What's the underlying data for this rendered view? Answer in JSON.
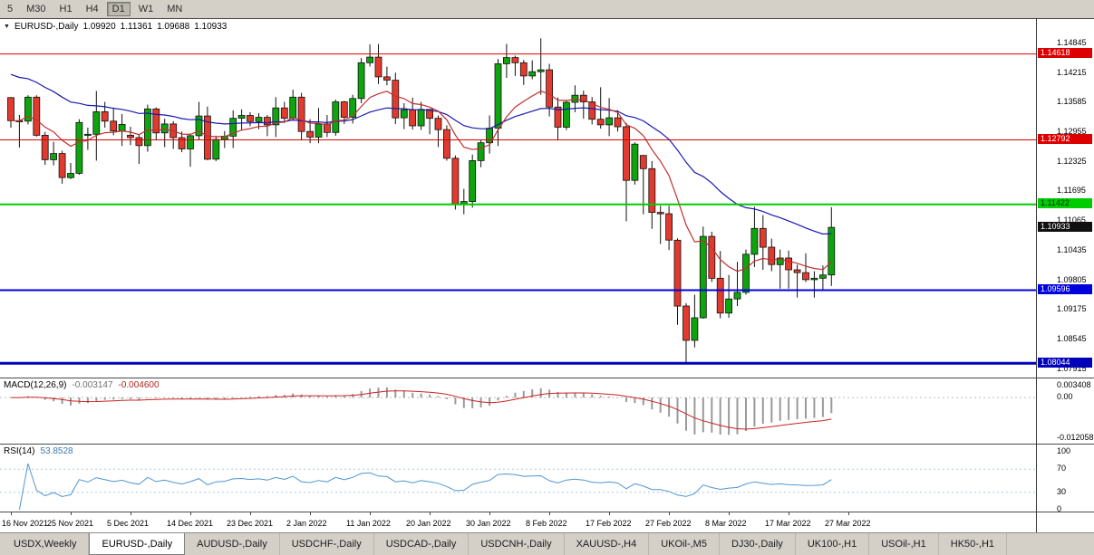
{
  "toolbar": {
    "timeframes": [
      {
        "label": "5",
        "active": false
      },
      {
        "label": "M30",
        "active": false
      },
      {
        "label": "H1",
        "active": false
      },
      {
        "label": "H4",
        "active": false
      },
      {
        "label": "D1",
        "active": true
      },
      {
        "label": "W1",
        "active": false
      },
      {
        "label": "MN",
        "active": false
      }
    ]
  },
  "chart": {
    "marker": "▼",
    "symbol_period": "EURUSD-,Daily",
    "open": "1.09920",
    "high": "1.11361",
    "low": "1.09688",
    "close": "1.10933"
  },
  "price_axis": {
    "ticks": [
      "1.14845",
      "1.14215",
      "1.13585",
      "1.12955",
      "1.12325",
      "1.11695",
      "1.11065",
      "1.10435",
      "1.09805",
      "1.09175",
      "1.08545",
      "1.07915"
    ],
    "badges": [
      {
        "name": "resistance-upper",
        "value": "1.14618",
        "bg": "#dd0000",
        "fg": "#ffffff"
      },
      {
        "name": "resistance-lower",
        "value": "1.12792",
        "bg": "#dd0000",
        "fg": "#ffffff"
      },
      {
        "name": "support-green",
        "value": "1.11422",
        "bg": "#00cc00",
        "fg": "#002b00"
      },
      {
        "name": "current-price",
        "value": "1.10933",
        "bg": "#101010",
        "fg": "#ffffff"
      },
      {
        "name": "support-blue",
        "value": "1.09596",
        "bg": "#0000dd",
        "fg": "#ffffff"
      },
      {
        "name": "support-blue-low",
        "value": "1.08044",
        "bg": "#0000bb",
        "fg": "#ffffff"
      }
    ]
  },
  "macd": {
    "label": "MACD(12,26,9)",
    "value_main": "-0.003147",
    "value_signal": "-0.004600",
    "scale": [
      "0.003408",
      "0.00",
      "-0.012058"
    ]
  },
  "rsi": {
    "label": "RSI(14)",
    "value": "53.8528",
    "scale": [
      "100",
      "70",
      "30",
      "0"
    ],
    "levels": [
      70,
      30
    ]
  },
  "tabs": {
    "items": [
      {
        "label": "USDX,Weekly",
        "active": false
      },
      {
        "label": "EURUSD-,Daily",
        "active": true
      },
      {
        "label": "AUDUSD-,Daily",
        "active": false
      },
      {
        "label": "USDCHF-,Daily",
        "active": false
      },
      {
        "label": "USDCAD-,Daily",
        "active": false
      },
      {
        "label": "USDCNH-,Daily",
        "active": false
      },
      {
        "label": "XAUUSD-,H4",
        "active": false
      },
      {
        "label": "UKOil-,M5",
        "active": false
      },
      {
        "label": "DJ30-,Daily",
        "active": false
      },
      {
        "label": "UK100-,H1",
        "active": false
      },
      {
        "label": "USOil-,H1",
        "active": false
      },
      {
        "label": "HK50-,H1",
        "active": false
      }
    ]
  },
  "chart_data": {
    "type": "candlestick",
    "symbol": "EURUSD-",
    "timeframe": "Daily",
    "price_range": [
      1.0774,
      1.1536
    ],
    "layout_hints": {
      "label_every_n_bars": 7,
      "grid": false,
      "shift_right": true
    },
    "colors": {
      "bull": "#0da40d",
      "bear": "#e23a2e",
      "ma_fast": "#c03030",
      "ma_slow": "#1818b0",
      "macd_hist": "#9a9a9a",
      "macd_signal": "#cc2222",
      "rsi": "#4f96d2",
      "level_red": "#dd0000",
      "level_green": "#00cc00",
      "level_blue": "#0000dd"
    },
    "levels": [
      {
        "value": 1.14618,
        "color": "#dd0000",
        "width": 1
      },
      {
        "value": 1.12792,
        "color": "#dd0000",
        "width": 1
      },
      {
        "value": 1.11422,
        "color": "#00cc00",
        "width": 2
      },
      {
        "value": 1.09596,
        "color": "#0000dd",
        "width": 2
      },
      {
        "value": 1.08044,
        "color": "#0000bb",
        "width": 3
      }
    ],
    "date_labels": [
      "16 Nov 2021",
      "25 Nov 2021",
      "5 Dec 2021",
      "14 Dec 2021",
      "23 Dec 2021",
      "2 Jan 2022",
      "11 Jan 2022",
      "20 Jan 2022",
      "30 Jan 2022",
      "8 Feb 2022",
      "17 Feb 2022",
      "27 Feb 2022",
      "8 Mar 2022",
      "17 Mar 2022",
      "27 Mar 2022"
    ],
    "candles": [
      [
        1.1369,
        1.137,
        1.1305,
        1.132
      ],
      [
        1.132,
        1.1332,
        1.1263,
        1.1319
      ],
      [
        1.1319,
        1.1374,
        1.1312,
        1.137
      ],
      [
        1.137,
        1.1374,
        1.1286,
        1.1289
      ],
      [
        1.1289,
        1.1296,
        1.1226,
        1.1237
      ],
      [
        1.1237,
        1.1275,
        1.1225,
        1.125
      ],
      [
        1.125,
        1.1256,
        1.1186,
        1.1199
      ],
      [
        1.1199,
        1.123,
        1.1196,
        1.1208
      ],
      [
        1.1208,
        1.1323,
        1.1205,
        1.1316
      ],
      [
        1.129,
        1.1305,
        1.1258,
        1.1291
      ],
      [
        1.1291,
        1.1383,
        1.1235,
        1.1339
      ],
      [
        1.1339,
        1.136,
        1.1305,
        1.1319
      ],
      [
        1.1319,
        1.1348,
        1.1289,
        1.1298
      ],
      [
        1.1298,
        1.1334,
        1.1266,
        1.1312
      ],
      [
        1.1289,
        1.1307,
        1.1268,
        1.1284
      ],
      [
        1.1284,
        1.129,
        1.1228,
        1.1267
      ],
      [
        1.1267,
        1.1354,
        1.1254,
        1.1345
      ],
      [
        1.1345,
        1.1348,
        1.128,
        1.1294
      ],
      [
        1.1294,
        1.1324,
        1.1264,
        1.1313
      ],
      [
        1.1313,
        1.1319,
        1.126,
        1.1284
      ],
      [
        1.1284,
        1.1297,
        1.1253,
        1.126
      ],
      [
        1.126,
        1.1292,
        1.1222,
        1.1288
      ],
      [
        1.1288,
        1.136,
        1.128,
        1.133
      ],
      [
        1.133,
        1.135,
        1.1236,
        1.1238
      ],
      [
        1.1238,
        1.1288,
        1.1234,
        1.128
      ],
      [
        1.128,
        1.1298,
        1.1262,
        1.1287
      ],
      [
        1.1287,
        1.1342,
        1.1262,
        1.1325
      ],
      [
        1.1325,
        1.1344,
        1.13,
        1.1331
      ],
      [
        1.1331,
        1.1338,
        1.1308,
        1.1318
      ],
      [
        1.1318,
        1.1336,
        1.1302,
        1.1327
      ],
      [
        1.1327,
        1.1332,
        1.1287,
        1.1311
      ],
      [
        1.1311,
        1.137,
        1.1285,
        1.1347
      ],
      [
        1.1347,
        1.136,
        1.1315,
        1.1325
      ],
      [
        1.1325,
        1.1386,
        1.132,
        1.137
      ],
      [
        1.137,
        1.1379,
        1.1279,
        1.1297
      ],
      [
        1.1297,
        1.1323,
        1.1272,
        1.1285
      ],
      [
        1.1285,
        1.1347,
        1.1272,
        1.1313
      ],
      [
        1.1313,
        1.1332,
        1.1285,
        1.1295
      ],
      [
        1.1295,
        1.1365,
        1.1288,
        1.136
      ],
      [
        1.136,
        1.1362,
        1.1313,
        1.1327
      ],
      [
        1.1327,
        1.1375,
        1.1314,
        1.1367
      ],
      [
        1.1367,
        1.1453,
        1.1357,
        1.1443
      ],
      [
        1.1443,
        1.1482,
        1.1435,
        1.1455
      ],
      [
        1.1455,
        1.1483,
        1.1398,
        1.1413
      ],
      [
        1.1413,
        1.1435,
        1.1395,
        1.1406
      ],
      [
        1.1406,
        1.1422,
        1.1313,
        1.1326
      ],
      [
        1.1326,
        1.1357,
        1.1302,
        1.1343
      ],
      [
        1.1343,
        1.1369,
        1.1301,
        1.1309
      ],
      [
        1.1309,
        1.136,
        1.13,
        1.1344
      ],
      [
        1.1344,
        1.1344,
        1.1291,
        1.1325
      ],
      [
        1.1325,
        1.1331,
        1.1264,
        1.1301
      ],
      [
        1.1301,
        1.131,
        1.1235,
        1.124
      ],
      [
        1.124,
        1.1246,
        1.1131,
        1.1143
      ],
      [
        1.1143,
        1.1175,
        1.1121,
        1.1148
      ],
      [
        1.1148,
        1.1248,
        1.1135,
        1.1235
      ],
      [
        1.1235,
        1.1279,
        1.1221,
        1.1273
      ],
      [
        1.1273,
        1.1331,
        1.125,
        1.1304
      ],
      [
        1.1304,
        1.1451,
        1.1266,
        1.1441
      ],
      [
        1.1441,
        1.1483,
        1.1411,
        1.1454
      ],
      [
        1.1454,
        1.1458,
        1.1415,
        1.1443
      ],
      [
        1.1443,
        1.1449,
        1.1396,
        1.1415
      ],
      [
        1.1415,
        1.1448,
        1.1408,
        1.1424
      ],
      [
        1.1424,
        1.1495,
        1.1375,
        1.1428
      ],
      [
        1.1428,
        1.1441,
        1.1329,
        1.1349
      ],
      [
        1.1349,
        1.1369,
        1.1278,
        1.1306
      ],
      [
        1.1306,
        1.1362,
        1.13,
        1.1359
      ],
      [
        1.1359,
        1.1395,
        1.1338,
        1.1374
      ],
      [
        1.1374,
        1.1384,
        1.1324,
        1.136
      ],
      [
        1.136,
        1.137,
        1.1312,
        1.1323
      ],
      [
        1.1323,
        1.1391,
        1.1303,
        1.1311
      ],
      [
        1.1311,
        1.1368,
        1.1287,
        1.1326
      ],
      [
        1.1326,
        1.1342,
        1.1297,
        1.1307
      ],
      [
        1.1307,
        1.1315,
        1.1106,
        1.1193
      ],
      [
        1.1193,
        1.1274,
        1.1184,
        1.127
      ],
      [
        1.1246,
        1.1247,
        1.1121,
        1.1218
      ],
      [
        1.1218,
        1.1234,
        1.109,
        1.1125
      ],
      [
        1.1125,
        1.1139,
        1.1058,
        1.1122
      ],
      [
        1.1122,
        1.1139,
        1.1045,
        1.1066
      ],
      [
        1.1066,
        1.107,
        1.0886,
        1.0926
      ],
      [
        1.0926,
        1.0932,
        1.0806,
        1.0853
      ],
      [
        1.0853,
        1.095,
        1.0838,
        1.0901
      ],
      [
        1.0901,
        1.1095,
        1.0899,
        1.1074
      ],
      [
        1.1074,
        1.1084,
        1.0977,
        1.0985
      ],
      [
        1.0985,
        1.1043,
        1.09,
        1.0911
      ],
      [
        1.0911,
        1.0992,
        1.0901,
        1.0941
      ],
      [
        1.0941,
        1.102,
        1.0926,
        1.0955
      ],
      [
        1.0955,
        1.1046,
        1.095,
        1.1036
      ],
      [
        1.1036,
        1.1137,
        1.1009,
        1.1091
      ],
      [
        1.1091,
        1.1119,
        1.1003,
        1.1051
      ],
      [
        1.1051,
        1.1069,
        1.1,
        1.1014
      ],
      [
        1.1014,
        1.1046,
        1.0963,
        1.1028
      ],
      [
        1.1028,
        1.1044,
        1.0963,
        1.1003
      ],
      [
        1.1003,
        1.1014,
        1.0944,
        1.0997
      ],
      [
        1.0997,
        1.1038,
        1.0977,
        1.0982
      ],
      [
        1.0982,
        1.1,
        1.0944,
        1.0985
      ],
      [
        1.0985,
        1.1012,
        1.0961,
        1.0992
      ],
      [
        1.0992,
        1.11361,
        1.09688,
        1.10933
      ]
    ]
  }
}
